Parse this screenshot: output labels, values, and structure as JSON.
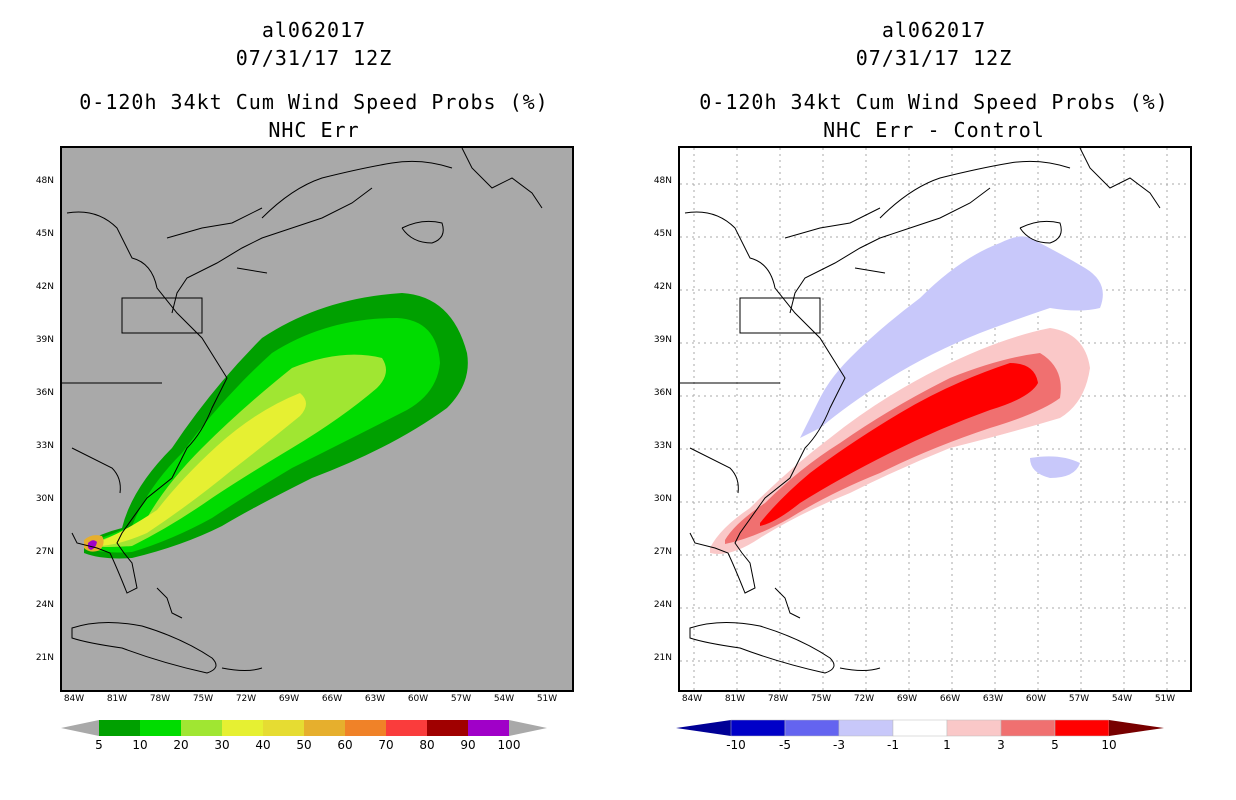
{
  "left_panel": {
    "storm_id": "al062017",
    "datetime": "07/31/17 12Z",
    "title": "0-120h 34kt Cum Wind Speed Probs (%)",
    "subtitle": "NHC Err",
    "colorbar_labels": [
      "5",
      "10",
      "20",
      "30",
      "40",
      "50",
      "60",
      "70",
      "80",
      "90",
      "100"
    ],
    "colorbar_colors": [
      "#00a000",
      "#00dc00",
      "#a0e632",
      "#e6f032",
      "#e6dc32",
      "#e6af2d",
      "#f08228",
      "#fa3c3c",
      "#a00000",
      "#a000c8"
    ],
    "land_color": "#a9a9a9"
  },
  "right_panel": {
    "storm_id": "al062017",
    "datetime": "07/31/17 12Z",
    "title": "0-120h 34kt Cum Wind Speed Probs (%)",
    "subtitle": "NHC Err - Control",
    "colorbar_labels": [
      "-10",
      "-5",
      "-3",
      "-1",
      "1",
      "3",
      "5",
      "10"
    ],
    "colorbar_colors": [
      "#0000c8",
      "#6464f0",
      "#c8c8fa",
      "#ffffff",
      "#fac8c8",
      "#f07070",
      "#ff0000"
    ],
    "end_colors": {
      "low": "#000096",
      "high": "#780000"
    }
  },
  "axes": {
    "lat_labels": [
      "48N",
      "45N",
      "42N",
      "39N",
      "36N",
      "33N",
      "30N",
      "27N",
      "24N",
      "21N"
    ],
    "lon_labels": [
      "84W",
      "81W",
      "78W",
      "75W",
      "72W",
      "69W",
      "66W",
      "63W",
      "60W",
      "57W",
      "54W",
      "51W"
    ]
  }
}
